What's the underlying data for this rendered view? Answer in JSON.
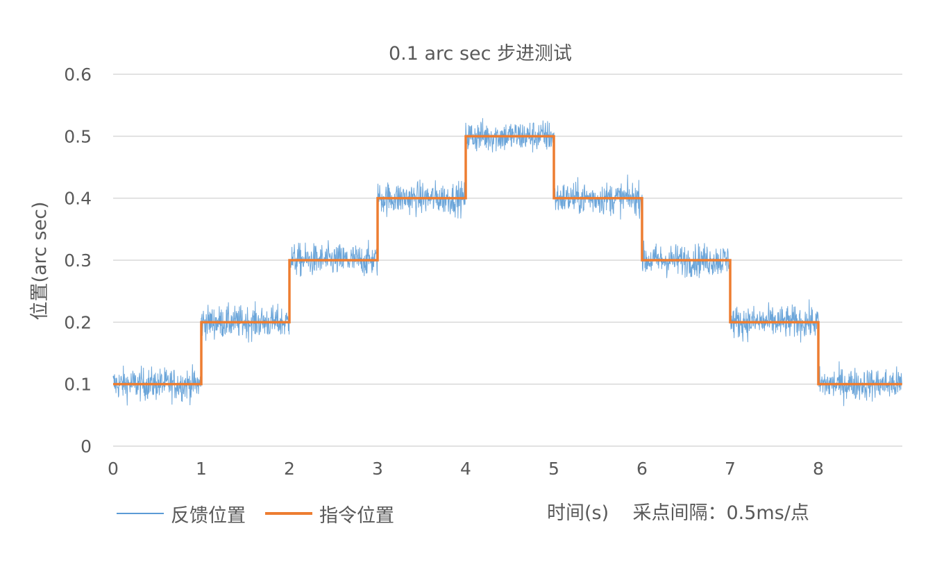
{
  "chart_data": {
    "type": "line",
    "title": "0.1 arc sec 步进测试",
    "ylabel": "位置(arc sec)",
    "xlabel": "时间(s)    采点间隔：0.5ms/点",
    "xlim": [
      0,
      8.95
    ],
    "ylim": [
      0,
      0.6
    ],
    "x_ticks": [
      "0",
      "1",
      "2",
      "3",
      "4",
      "5",
      "6",
      "7",
      "8"
    ],
    "y_ticks": [
      "0",
      "0.1",
      "0.2",
      "0.3",
      "0.4",
      "0.5",
      "0.6"
    ],
    "grid": true,
    "legend_position": "bottom-left",
    "series": [
      {
        "name": "反馈位置",
        "color": "#5B9BD5",
        "style": "noisy",
        "x": [
          0,
          1,
          2,
          3,
          4,
          5,
          6,
          7,
          8
        ],
        "y_mean": [
          0.1,
          0.2,
          0.3,
          0.4,
          0.5,
          0.4,
          0.3,
          0.2,
          0.1
        ],
        "noise_amplitude": 0.05
      },
      {
        "name": "指令位置",
        "color": "#ED7D31",
        "style": "step",
        "x": [
          0,
          1,
          2,
          3,
          4,
          5,
          6,
          7,
          8,
          8.95
        ],
        "y": [
          0.1,
          0.2,
          0.3,
          0.4,
          0.5,
          0.4,
          0.3,
          0.2,
          0.1,
          0.1
        ]
      }
    ]
  }
}
